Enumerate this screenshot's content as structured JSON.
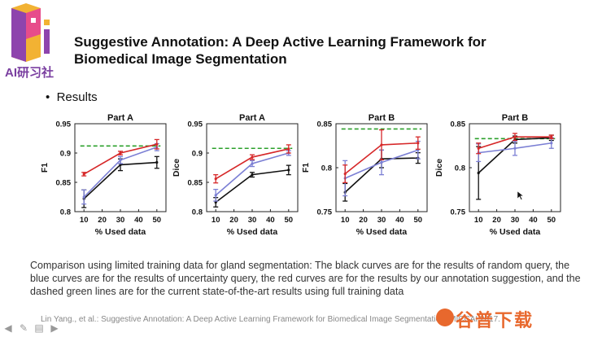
{
  "logo": {
    "text": "AI研习社",
    "color": "#7a3fa0"
  },
  "slide": {
    "title_line1": "Suggestive Annotation: A Deep Active Learning Framework for",
    "title_line2": "Biomedical Image Segmentation",
    "bullet": "Results",
    "caption": "Comparison using limited training data for gland segmentation: The black curves are for the results of random query, the blue curves are for the results of uncertainty query, the red curves are for the results by our annotation suggestion, and the dashed green lines are for the current state-of-the-art results using full training data",
    "citation": "Lin Yang., et al.: Suggestive Annotation: A Deep Active Learning Framework for Biomedical Image Segmentation, MICCAI 2017."
  },
  "watermark": {
    "text": "谷普下载"
  },
  "toolbar": [
    "arrow-left-icon",
    "pen-icon",
    "slides-icon",
    "arrow-right-icon"
  ],
  "colors": {
    "red": "#d62728",
    "blue": "#7b7fd4",
    "black": "#111111",
    "green": "#2ca02c"
  },
  "chart_data": [
    {
      "type": "line",
      "title": "Part A",
      "xlabel": "% Used data",
      "ylabel": "F1",
      "x": [
        10,
        30,
        50
      ],
      "xticks": [
        10,
        20,
        30,
        40,
        50
      ],
      "yticks": [
        "0.8",
        "0.85",
        "0.9",
        "0.95"
      ],
      "ylim": [
        0.8,
        0.95
      ],
      "xlim": [
        5,
        55
      ],
      "baseline": 0.912,
      "series": [
        {
          "color": "red",
          "values": [
            0.864,
            0.9,
            0.915
          ],
          "err": [
            0.003,
            0.003,
            0.008
          ]
        },
        {
          "color": "blue",
          "values": [
            0.825,
            0.888,
            0.91
          ],
          "err": [
            0.012,
            0.006,
            0.006
          ]
        },
        {
          "color": "black",
          "values": [
            0.822,
            0.88,
            0.884
          ],
          "err": [
            0.015,
            0.01,
            0.01
          ]
        }
      ]
    },
    {
      "type": "line",
      "title": "Part A",
      "xlabel": "% Used data",
      "ylabel": "Dice",
      "x": [
        10,
        30,
        50
      ],
      "xticks": [
        10,
        20,
        30,
        40,
        50
      ],
      "yticks": [
        "0.8",
        "0.85",
        "0.9",
        "0.95"
      ],
      "ylim": [
        0.8,
        0.95
      ],
      "xlim": [
        5,
        55
      ],
      "baseline": 0.908,
      "series": [
        {
          "color": "red",
          "values": [
            0.856,
            0.893,
            0.907
          ],
          "err": [
            0.007,
            0.004,
            0.007
          ]
        },
        {
          "color": "blue",
          "values": [
            0.828,
            0.882,
            0.9
          ],
          "err": [
            0.01,
            0.005,
            0.004
          ]
        },
        {
          "color": "black",
          "values": [
            0.816,
            0.863,
            0.871
          ],
          "err": [
            0.008,
            0.004,
            0.008
          ]
        }
      ]
    },
    {
      "type": "line",
      "title": "Part B",
      "xlabel": "% Used data",
      "ylabel": "F1",
      "x": [
        10,
        30,
        50
      ],
      "xticks": [
        10,
        20,
        30,
        40,
        50
      ],
      "yticks": [
        "0.75",
        "0.8",
        "0.85"
      ],
      "ylim": [
        0.75,
        0.85
      ],
      "xlim": [
        5,
        55
      ],
      "baseline": 0.844,
      "series": [
        {
          "color": "red",
          "values": [
            0.793,
            0.826,
            0.828
          ],
          "err": [
            0.01,
            0.017,
            0.007
          ]
        },
        {
          "color": "blue",
          "values": [
            0.788,
            0.806,
            0.82
          ],
          "err": [
            0.02,
            0.014,
            0.01
          ]
        },
        {
          "color": "black",
          "values": [
            0.772,
            0.81,
            0.811
          ],
          "err": [
            0.01,
            0.01,
            0.006
          ]
        }
      ]
    },
    {
      "type": "line",
      "title": "Part B",
      "xlabel": "% Used data",
      "ylabel": "Dice",
      "x": [
        10,
        30,
        50
      ],
      "xticks": [
        10,
        20,
        30,
        40,
        50
      ],
      "yticks": [
        "0.75",
        "0.8",
        "0.85"
      ],
      "ylim": [
        0.75,
        0.85
      ],
      "xlim": [
        5,
        55
      ],
      "baseline": 0.833,
      "series": [
        {
          "color": "red",
          "values": [
            0.822,
            0.835,
            0.835
          ],
          "err": [
            0.006,
            0.004,
            0.002
          ]
        },
        {
          "color": "blue",
          "values": [
            0.817,
            0.822,
            0.828
          ],
          "err": [
            0.01,
            0.008,
            0.006
          ]
        },
        {
          "color": "black",
          "values": [
            0.794,
            0.832,
            0.834
          ],
          "err": [
            0.03,
            0.004,
            0.003
          ]
        }
      ]
    }
  ]
}
